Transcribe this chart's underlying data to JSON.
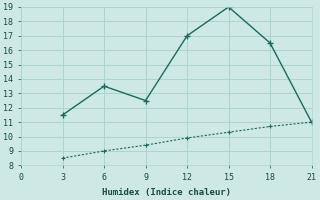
{
  "xlabel": "Humidex (Indice chaleur)",
  "background_color": "#cde8e5",
  "grid_color": "#afd4cf",
  "line_color": "#1a6b5e",
  "xlim": [
    0,
    21
  ],
  "ylim": [
    8,
    19
  ],
  "xticks": [
    0,
    3,
    6,
    9,
    12,
    15,
    18,
    21
  ],
  "yticks": [
    8,
    9,
    10,
    11,
    12,
    13,
    14,
    15,
    16,
    17,
    18,
    19
  ],
  "line1_x": [
    3,
    6,
    9,
    12,
    15,
    18,
    21
  ],
  "line1_y": [
    11.5,
    13.5,
    12.5,
    17.0,
    19.0,
    16.5,
    11.0
  ],
  "line2_x": [
    3,
    6,
    9,
    12,
    15,
    18,
    21
  ],
  "line2_y": [
    8.5,
    9.0,
    9.4,
    9.9,
    10.3,
    10.7,
    11.0
  ]
}
